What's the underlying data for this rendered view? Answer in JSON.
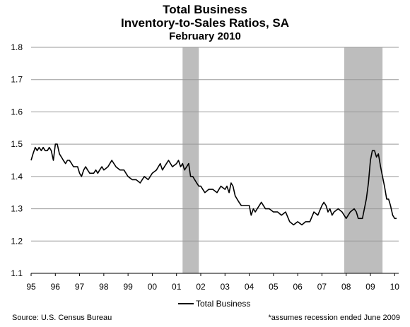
{
  "chart_data": {
    "type": "line",
    "title": "Total Business",
    "subtitle": "Inventory-to-Sales Ratios, SA",
    "date_label": "February 2010",
    "xlabel": "",
    "ylabel": "",
    "ylim": [
      1.1,
      1.8
    ],
    "yticks": [
      "1.1",
      "1.2",
      "1.3",
      "1.4",
      "1.5",
      "1.6",
      "1.7",
      "1.8"
    ],
    "xlim": [
      1995.0,
      2010.167
    ],
    "xtick_labels": [
      "95",
      "96",
      "97",
      "98",
      "99",
      "00",
      "01",
      "02",
      "03",
      "04",
      "05",
      "06",
      "07",
      "08",
      "09",
      "10"
    ],
    "grid": "horizontal",
    "legend_position": "bottom-center",
    "series": [
      {
        "name": "Total Business",
        "color": "#000000",
        "x": [
          1995.0,
          1995.08,
          1995.17,
          1995.25,
          1995.33,
          1995.42,
          1995.5,
          1995.58,
          1995.67,
          1995.75,
          1995.83,
          1995.92,
          1996.0,
          1996.08,
          1996.17,
          1996.25,
          1996.33,
          1996.42,
          1996.5,
          1996.58,
          1996.67,
          1996.75,
          1996.83,
          1996.92,
          1997.0,
          1997.08,
          1997.17,
          1997.25,
          1997.33,
          1997.42,
          1997.5,
          1997.58,
          1997.67,
          1997.75,
          1997.83,
          1997.92,
          1998.0,
          1998.17,
          1998.33,
          1998.5,
          1998.67,
          1998.83,
          1999.0,
          1999.17,
          1999.33,
          1999.5,
          1999.67,
          1999.83,
          2000.0,
          2000.17,
          2000.33,
          2000.42,
          2000.5,
          2000.67,
          2000.83,
          2001.0,
          2001.08,
          2001.17,
          2001.25,
          2001.33,
          2001.42,
          2001.5,
          2001.58,
          2001.67,
          2001.75,
          2001.83,
          2001.92,
          2002.0,
          2002.17,
          2002.33,
          2002.5,
          2002.67,
          2002.83,
          2003.0,
          2003.08,
          2003.17,
          2003.25,
          2003.33,
          2003.42,
          2003.5,
          2003.58,
          2003.67,
          2003.83,
          2004.0,
          2004.08,
          2004.17,
          2004.25,
          2004.33,
          2004.5,
          2004.67,
          2004.83,
          2005.0,
          2005.17,
          2005.33,
          2005.5,
          2005.67,
          2005.83,
          2006.0,
          2006.17,
          2006.33,
          2006.5,
          2006.67,
          2006.83,
          2007.0,
          2007.08,
          2007.17,
          2007.25,
          2007.33,
          2007.42,
          2007.5,
          2007.67,
          2007.83,
          2008.0,
          2008.17,
          2008.33,
          2008.42,
          2008.5,
          2008.67,
          2008.83,
          2008.92,
          2009.0,
          2009.08,
          2009.17,
          2009.25,
          2009.33,
          2009.42,
          2009.5,
          2009.58,
          2009.67,
          2009.75,
          2009.83,
          2009.92,
          2010.0,
          2010.08
        ],
        "values": [
          1.45,
          1.47,
          1.49,
          1.48,
          1.49,
          1.48,
          1.49,
          1.48,
          1.48,
          1.49,
          1.48,
          1.45,
          1.5,
          1.5,
          1.47,
          1.46,
          1.45,
          1.44,
          1.45,
          1.45,
          1.44,
          1.43,
          1.43,
          1.43,
          1.41,
          1.4,
          1.42,
          1.43,
          1.42,
          1.41,
          1.41,
          1.41,
          1.42,
          1.41,
          1.42,
          1.43,
          1.42,
          1.43,
          1.45,
          1.43,
          1.42,
          1.42,
          1.4,
          1.39,
          1.39,
          1.38,
          1.4,
          1.39,
          1.41,
          1.42,
          1.44,
          1.42,
          1.43,
          1.45,
          1.43,
          1.44,
          1.45,
          1.43,
          1.44,
          1.42,
          1.43,
          1.44,
          1.4,
          1.4,
          1.39,
          1.38,
          1.37,
          1.37,
          1.35,
          1.36,
          1.36,
          1.35,
          1.37,
          1.36,
          1.37,
          1.35,
          1.38,
          1.37,
          1.34,
          1.33,
          1.32,
          1.31,
          1.31,
          1.31,
          1.28,
          1.3,
          1.29,
          1.3,
          1.32,
          1.3,
          1.3,
          1.29,
          1.29,
          1.28,
          1.29,
          1.26,
          1.25,
          1.26,
          1.25,
          1.26,
          1.26,
          1.29,
          1.28,
          1.31,
          1.32,
          1.31,
          1.29,
          1.3,
          1.28,
          1.29,
          1.3,
          1.29,
          1.27,
          1.29,
          1.3,
          1.29,
          1.27,
          1.27,
          1.33,
          1.38,
          1.45,
          1.48,
          1.48,
          1.46,
          1.47,
          1.43,
          1.4,
          1.37,
          1.33,
          1.33,
          1.31,
          1.28,
          1.27,
          1.27
        ]
      }
    ],
    "recessions": [
      {
        "start": 2001.25,
        "end": 2001.92
      },
      {
        "start": 2007.92,
        "end": 2009.5
      }
    ],
    "recession_color": "#bdbdbd"
  },
  "source": "Source: U.S. Census Bureau",
  "footnote": "*assumes recession ended June 2009"
}
